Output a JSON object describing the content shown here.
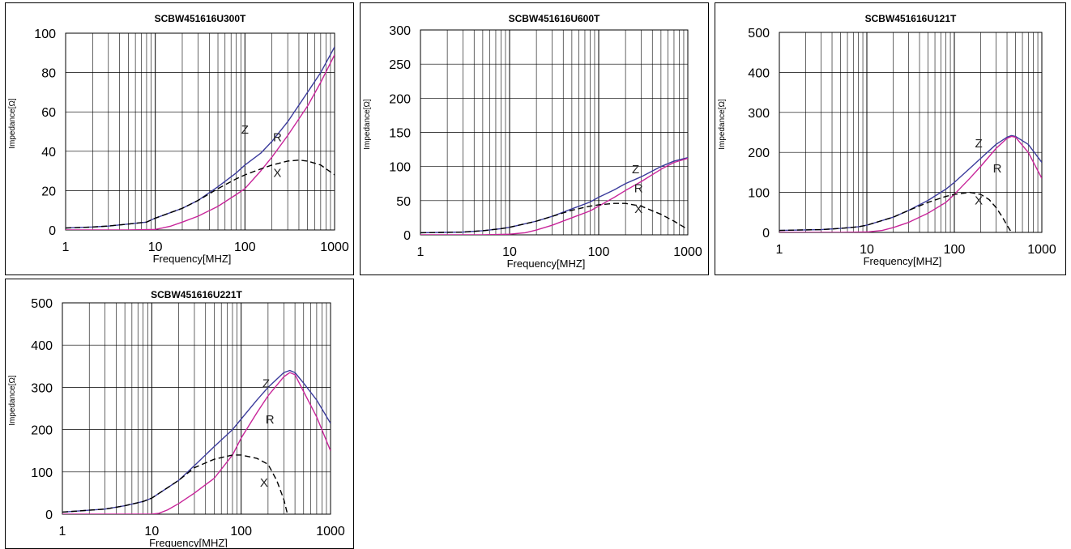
{
  "chart_data": [
    {
      "type": "line",
      "title": "SCBW451616U300T",
      "xlabel": "Frequency[MHZ]",
      "ylabel": "Impedance[Ω]",
      "xscale": "log",
      "xlim": [
        1,
        1000
      ],
      "ylim": [
        0,
        100
      ],
      "xticks": [
        "1",
        "10",
        "100",
        "1000"
      ],
      "yticks": [
        0,
        20,
        40,
        60,
        80,
        100
      ],
      "grid": true,
      "series": [
        {
          "name": "Z",
          "color": "#3b3b9c",
          "dash": false,
          "x": [
            1,
            2,
            3,
            5,
            8,
            10,
            20,
            30,
            50,
            80,
            100,
            150,
            200,
            300,
            500,
            700,
            1000
          ],
          "y": [
            1,
            1.5,
            2,
            3,
            4,
            6,
            11,
            15,
            22,
            29,
            33,
            39,
            45,
            55,
            70,
            80,
            93
          ]
        },
        {
          "name": "R",
          "color": "#c8259a",
          "dash": false,
          "x": [
            1,
            5,
            10,
            12,
            15,
            20,
            30,
            50,
            80,
            100,
            150,
            200,
            300,
            500,
            700,
            1000
          ],
          "y": [
            0,
            0,
            0.3,
            1,
            2,
            4,
            7,
            12,
            18,
            21,
            30,
            37,
            48,
            63,
            75,
            89
          ]
        },
        {
          "name": "X",
          "color": "#000000",
          "dash": true,
          "x": [
            1,
            2,
            3,
            5,
            8,
            10,
            20,
            30,
            50,
            80,
            100,
            150,
            200,
            300,
            400,
            500,
            700,
            1000
          ],
          "y": [
            1,
            1.5,
            2,
            3,
            4,
            6,
            11,
            15,
            21,
            26,
            28,
            31,
            33,
            35,
            35.5,
            35,
            33,
            28
          ]
        }
      ],
      "annotations": [
        {
          "text": "Z",
          "x": 100,
          "y": 49
        },
        {
          "text": "R",
          "x": 230,
          "y": 45
        },
        {
          "text": "X",
          "x": 230,
          "y": 27
        }
      ]
    },
    {
      "type": "line",
      "title": "SCBW451616U600T",
      "xlabel": "Frequency[MHZ]",
      "ylabel": "Impedance[Ω]",
      "xscale": "log",
      "xlim": [
        1,
        1000
      ],
      "ylim": [
        0,
        300
      ],
      "xticks": [
        "1",
        "10",
        "100",
        "1000"
      ],
      "yticks": [
        0,
        50,
        100,
        150,
        200,
        250,
        300
      ],
      "grid": true,
      "series": [
        {
          "name": "Z",
          "color": "#3b3b9c",
          "dash": false,
          "x": [
            1,
            3,
            5,
            8,
            10,
            20,
            30,
            50,
            80,
            100,
            150,
            200,
            300,
            500,
            700,
            1000
          ],
          "y": [
            3,
            4,
            6,
            9,
            11,
            20,
            27,
            38,
            48,
            55,
            66,
            75,
            85,
            100,
            108,
            113
          ]
        },
        {
          "name": "R",
          "color": "#c8259a",
          "dash": false,
          "x": [
            1,
            5,
            10,
            15,
            20,
            30,
            50,
            80,
            100,
            150,
            200,
            300,
            500,
            700,
            1000
          ],
          "y": [
            0,
            0,
            1,
            3,
            7,
            14,
            25,
            35,
            42,
            55,
            65,
            78,
            96,
            106,
            112
          ]
        },
        {
          "name": "X",
          "color": "#000000",
          "dash": true,
          "x": [
            1,
            3,
            5,
            8,
            10,
            20,
            30,
            50,
            80,
            100,
            150,
            200,
            300,
            500,
            700,
            1000
          ],
          "y": [
            3,
            4,
            6,
            9,
            11,
            20,
            27,
            36,
            42,
            44,
            46,
            46,
            42,
            30,
            20,
            8
          ]
        }
      ],
      "annotations": [
        {
          "text": "Z",
          "x": 260,
          "y": 90
        },
        {
          "text": "R",
          "x": 280,
          "y": 62
        },
        {
          "text": "X",
          "x": 280,
          "y": 32
        }
      ]
    },
    {
      "type": "line",
      "title": "SCBW451616U121T",
      "xlabel": "Frequency[MHZ]",
      "ylabel": "Impedance[Ω]",
      "xscale": "log",
      "xlim": [
        1,
        1000
      ],
      "ylim": [
        0,
        500
      ],
      "xticks": [
        "1",
        "10",
        "100",
        "1000"
      ],
      "yticks": [
        0,
        100,
        200,
        300,
        400,
        500
      ],
      "grid": true,
      "series": [
        {
          "name": "Z",
          "color": "#3b3b9c",
          "dash": false,
          "x": [
            1,
            3,
            5,
            8,
            10,
            20,
            30,
            50,
            80,
            100,
            150,
            200,
            300,
            400,
            450,
            500,
            700,
            1000
          ],
          "y": [
            5,
            7,
            10,
            14,
            18,
            38,
            55,
            80,
            108,
            125,
            160,
            185,
            220,
            238,
            242,
            240,
            220,
            175
          ]
        },
        {
          "name": "R",
          "color": "#c8259a",
          "dash": false,
          "x": [
            1,
            5,
            10,
            15,
            20,
            30,
            50,
            80,
            100,
            150,
            200,
            300,
            400,
            450,
            500,
            700,
            1000
          ],
          "y": [
            0,
            0,
            1,
            5,
            12,
            25,
            48,
            75,
            95,
            135,
            165,
            210,
            235,
            240,
            238,
            200,
            135
          ]
        },
        {
          "name": "X",
          "color": "#000000",
          "dash": true,
          "x": [
            1,
            3,
            5,
            8,
            10,
            20,
            30,
            50,
            80,
            100,
            150,
            200,
            250,
            300,
            350,
            400,
            450
          ],
          "y": [
            5,
            7,
            10,
            14,
            18,
            38,
            55,
            75,
            90,
            95,
            100,
            95,
            82,
            62,
            40,
            18,
            0
          ]
        }
      ],
      "annotations": [
        {
          "text": "Z",
          "x": 190,
          "y": 213
        },
        {
          "text": "R",
          "x": 310,
          "y": 150
        },
        {
          "text": "X",
          "x": 190,
          "y": 70
        }
      ]
    },
    {
      "type": "line",
      "title": "SCBW451616U221T",
      "xlabel": "Frequency[MHZ]",
      "ylabel": "Impedance[Ω]",
      "xscale": "log",
      "xlim": [
        1,
        1000
      ],
      "ylim": [
        0,
        500
      ],
      "xticks": [
        "1",
        "10",
        "100",
        "1000"
      ],
      "yticks": [
        0,
        100,
        200,
        300,
        400,
        500
      ],
      "grid": true,
      "series": [
        {
          "name": "Z",
          "color": "#3b3b9c",
          "dash": false,
          "x": [
            1,
            3,
            5,
            8,
            10,
            20,
            30,
            50,
            80,
            100,
            150,
            200,
            300,
            350,
            400,
            500,
            700,
            1000
          ],
          "y": [
            5,
            12,
            20,
            30,
            38,
            80,
            115,
            160,
            200,
            225,
            270,
            300,
            335,
            340,
            335,
            310,
            270,
            215
          ]
        },
        {
          "name": "R",
          "color": "#c8259a",
          "dash": false,
          "x": [
            1,
            10,
            12,
            15,
            20,
            30,
            50,
            80,
            100,
            150,
            200,
            300,
            350,
            400,
            500,
            700,
            1000
          ],
          "y": [
            0,
            0,
            2,
            10,
            25,
            50,
            85,
            140,
            180,
            240,
            280,
            325,
            335,
            330,
            290,
            230,
            150
          ]
        },
        {
          "name": "X",
          "color": "#000000",
          "dash": true,
          "x": [
            1,
            3,
            5,
            8,
            10,
            20,
            30,
            50,
            80,
            100,
            150,
            200,
            250,
            300,
            330
          ],
          "y": [
            5,
            12,
            20,
            30,
            38,
            80,
            110,
            130,
            140,
            140,
            132,
            118,
            80,
            35,
            0
          ]
        }
      ],
      "annotations": [
        {
          "text": "Z",
          "x": 190,
          "y": 300
        },
        {
          "text": "R",
          "x": 210,
          "y": 215
        },
        {
          "text": "X",
          "x": 180,
          "y": 65
        }
      ]
    }
  ]
}
